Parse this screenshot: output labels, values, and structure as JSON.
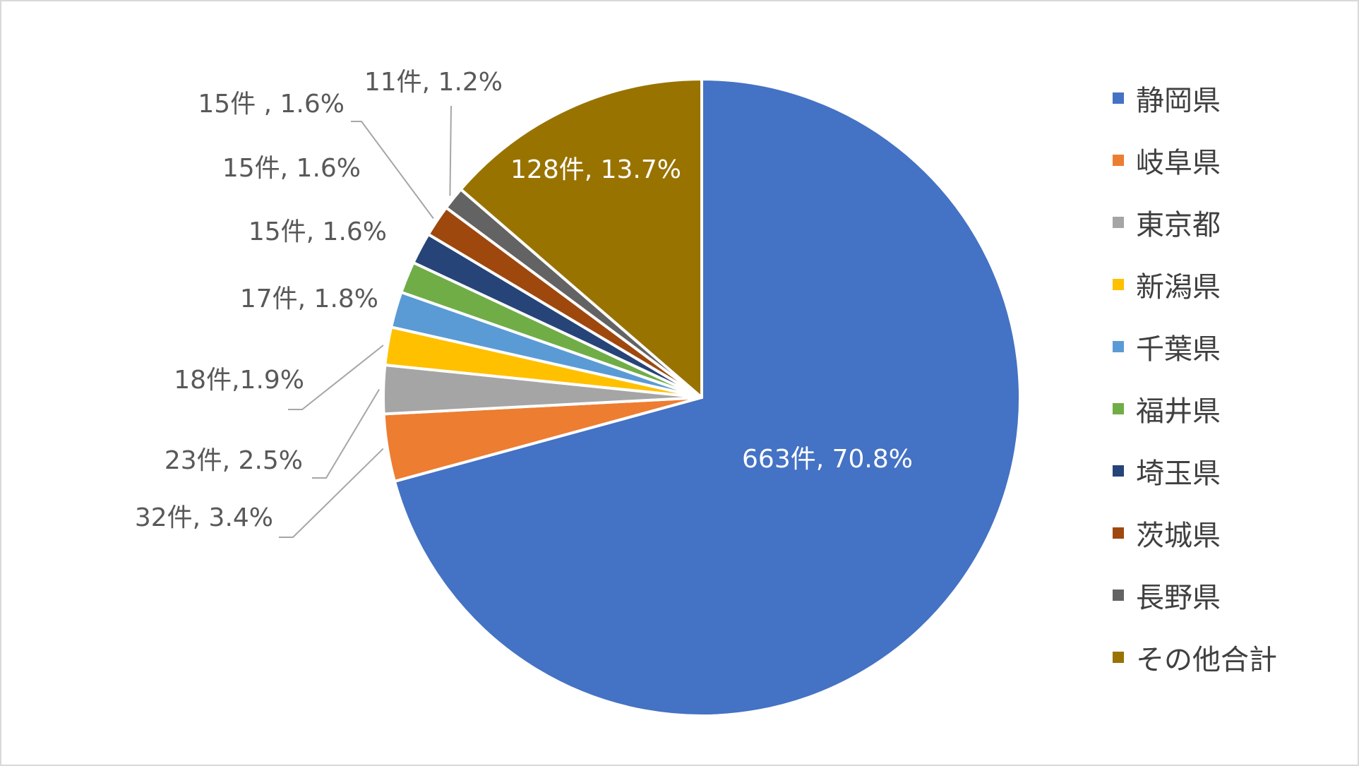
{
  "chart_data": {
    "type": "pie",
    "slices": [
      {
        "name": "静岡県",
        "count": 663,
        "percent": 70.8,
        "label": "663件, 70.8%",
        "color": "#4472c4"
      },
      {
        "name": "岐阜県",
        "count": 32,
        "percent": 3.4,
        "label": "32件, 3.4%",
        "color": "#ed7d31"
      },
      {
        "name": "東京都",
        "count": 23,
        "percent": 2.5,
        "label": "23件, 2.5%",
        "color": "#a5a5a5"
      },
      {
        "name": "新潟県",
        "count": 18,
        "percent": 1.9,
        "label": "18件,1.9%",
        "color": "#ffc000"
      },
      {
        "name": "千葉県",
        "count": 17,
        "percent": 1.8,
        "label": "17件, 1.8%",
        "color": "#5b9bd5"
      },
      {
        "name": "福井県",
        "count": 15,
        "percent": 1.6,
        "label": "15件, 1.6%",
        "color": "#70ad47"
      },
      {
        "name": "埼玉県",
        "count": 15,
        "percent": 1.6,
        "label": "15件, 1.6%",
        "color": "#264478"
      },
      {
        "name": "茨城県",
        "count": 15,
        "percent": 1.6,
        "label": "15件 , 1.6%",
        "color": "#9e480e"
      },
      {
        "name": "長野県",
        "count": 11,
        "percent": 1.2,
        "label": "11件, 1.2%",
        "color": "#636363"
      },
      {
        "name": "その他合計",
        "count": 128,
        "percent": 13.7,
        "label": "128件, 13.7%",
        "color": "#997300"
      }
    ],
    "legend_position": "right",
    "start_angle": "12 o'clock, clockwise"
  }
}
